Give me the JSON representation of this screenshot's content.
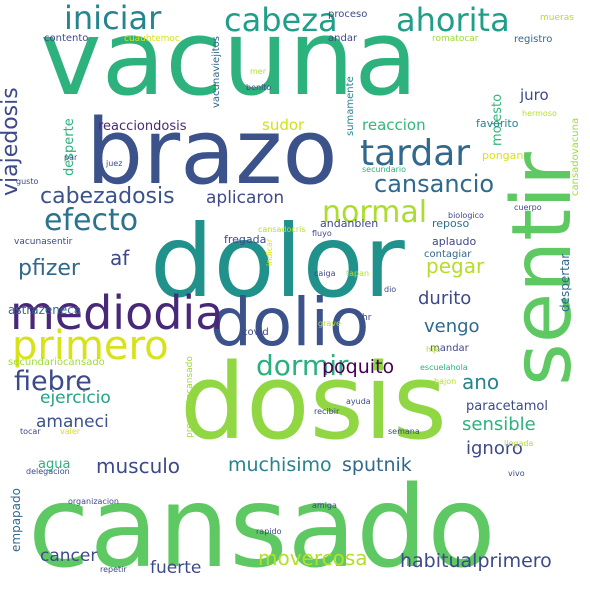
{
  "title": "word cloud",
  "palette": {
    "dark_purple": "#440154",
    "indigo": "#46337e",
    "slate_blue": "#365c8d",
    "blue_teal": "#277f8e",
    "teal": "#1fa187",
    "green": "#4ac16d",
    "light_green": "#9fda3a",
    "yellow": "#fde725"
  },
  "words": [
    {
      "text": "vacuna",
      "color": "#2db27d",
      "weight": 100
    },
    {
      "text": "cansado",
      "color": "#5ec962",
      "weight": 98
    },
    {
      "text": "dosis",
      "color": "#90d743",
      "weight": 90
    },
    {
      "text": "dolor",
      "color": "#21918c",
      "weight": 88
    },
    {
      "text": "brazo",
      "color": "#3b528b",
      "weight": 80
    },
    {
      "text": "sentir",
      "color": "#5ec962",
      "weight": 76
    },
    {
      "text": "dolio",
      "color": "#3b528b",
      "weight": 60
    },
    {
      "text": "mediodia",
      "color": "#482878",
      "weight": 45
    },
    {
      "text": "primero",
      "color": "#d8e219",
      "weight": 40
    },
    {
      "text": "tardar",
      "color": "#31688e",
      "weight": 38
    },
    {
      "text": "iniciar",
      "color": "#25858e",
      "weight": 34
    },
    {
      "text": "cabeza",
      "color": "#1f9e89",
      "weight": 34
    },
    {
      "text": "ahorita",
      "color": "#1f9e89",
      "weight": 34
    },
    {
      "text": "normal",
      "color": "#addc30",
      "weight": 32
    },
    {
      "text": "efecto",
      "color": "#2c728e",
      "weight": 32
    },
    {
      "text": "dormir",
      "color": "#2ab07f",
      "weight": 30
    },
    {
      "text": "fiebre",
      "color": "#3e4989",
      "weight": 29
    },
    {
      "text": "cansancio",
      "color": "#31688e",
      "weight": 26
    },
    {
      "text": "cabezadosis",
      "color": "#3b528b",
      "weight": 24
    },
    {
      "text": "pfizer",
      "color": "#31688e",
      "weight": 24
    },
    {
      "text": "viajedosis",
      "color": "#3e4989",
      "weight": 22
    },
    {
      "text": "pegar",
      "color": "#b5de2b",
      "weight": 22
    },
    {
      "text": "ano",
      "color": "#25858e",
      "weight": 22
    },
    {
      "text": "movercosa",
      "color": "#b5de2b",
      "weight": 22
    },
    {
      "text": "musculo",
      "color": "#3e4989",
      "weight": 22
    },
    {
      "text": "habitualprimero",
      "color": "#3e4989",
      "weight": 21
    },
    {
      "text": "poquito",
      "color": "#440154",
      "weight": 21
    },
    {
      "text": "muchisimo",
      "color": "#26828e",
      "weight": 21
    },
    {
      "text": "sputnik",
      "color": "#31688e",
      "weight": 21
    },
    {
      "text": "durito",
      "color": "#3e4989",
      "weight": 20
    },
    {
      "text": "vengo",
      "color": "#31688e",
      "weight": 20
    },
    {
      "text": "sensible",
      "color": "#2db27d",
      "weight": 20
    },
    {
      "text": "ignoro",
      "color": "#3e4989",
      "weight": 20
    },
    {
      "text": "aplicaron",
      "color": "#3e4989",
      "weight": 19
    },
    {
      "text": "ejercicio",
      "color": "#20a486",
      "weight": 19
    },
    {
      "text": "amaneci",
      "color": "#3b528b",
      "weight": 19
    },
    {
      "text": "cancer",
      "color": "#3e4989",
      "weight": 19
    },
    {
      "text": "fuerte",
      "color": "#3e4989",
      "weight": 19
    },
    {
      "text": "af",
      "color": "#3e4989",
      "weight": 20
    },
    {
      "text": "juro",
      "color": "#3e4989",
      "weight": 17
    },
    {
      "text": "sudor",
      "color": "#d0e11c",
      "weight": 16
    },
    {
      "text": "reaccion",
      "color": "#32b67a",
      "weight": 16
    },
    {
      "text": "reacciondosis",
      "color": "#482878",
      "weight": 14
    },
    {
      "text": "paracetamol",
      "color": "#3e4989",
      "weight": 14
    },
    {
      "text": "agua",
      "color": "#2db27d",
      "weight": 14
    },
    {
      "text": "empapado",
      "color": "#31688e",
      "weight": 13
    },
    {
      "text": "astrazeneca",
      "color": "#31688e",
      "weight": 13
    },
    {
      "text": "despertar",
      "color": "#31688e",
      "weight": 13
    },
    {
      "text": "desperte",
      "color": "#2db27d",
      "weight": 13
    },
    {
      "text": "molesto",
      "color": "#32b67a",
      "weight": 13
    },
    {
      "text": "vacunaviejitos",
      "color": "#31688e",
      "weight": 11
    },
    {
      "text": "fregada",
      "color": "#3e4989",
      "weight": 11
    },
    {
      "text": "andanbien",
      "color": "#3e4989",
      "weight": 11
    },
    {
      "text": "reposo",
      "color": "#2c728e",
      "weight": 11
    },
    {
      "text": "pongan",
      "color": "#d8e219",
      "weight": 11
    },
    {
      "text": "favorito",
      "color": "#25858e",
      "weight": 11
    },
    {
      "text": "aplaudo",
      "color": "#3e4989",
      "weight": 11
    },
    {
      "text": "contagiar",
      "color": "#31688e",
      "weight": 10
    },
    {
      "text": "registro",
      "color": "#31688e",
      "weight": 10
    },
    {
      "text": "proceso",
      "color": "#3e4989",
      "weight": 10
    },
    {
      "text": "contento",
      "color": "#3e4989",
      "weight": 10
    },
    {
      "text": "andar",
      "color": "#3e4989",
      "weight": 10
    },
    {
      "text": "mandar",
      "color": "#3e4989",
      "weight": 10
    },
    {
      "text": "covid",
      "color": "#3e4989",
      "weight": 10
    },
    {
      "text": "sumamente",
      "color": "#25858e",
      "weight": 10
    },
    {
      "text": "cansadovacuna",
      "color": "#9fda3a",
      "weight": 10
    },
    {
      "text": "secundariocansado",
      "color": "#9fda3a",
      "weight": 10
    },
    {
      "text": "preparatecansado",
      "color": "#9fda3a",
      "weight": 9
    },
    {
      "text": "cuauhtemoc",
      "color": "#d8e219",
      "weight": 9
    },
    {
      "text": "romatocar",
      "color": "#9fda3a",
      "weight": 9
    },
    {
      "text": "mueras",
      "color": "#b5de2b",
      "weight": 9
    },
    {
      "text": "hermoso",
      "color": "#b5de2b",
      "weight": 8
    },
    {
      "text": "mer",
      "color": "#b5de2b",
      "weight": 8
    },
    {
      "text": "benito",
      "color": "#3e4989",
      "weight": 8
    },
    {
      "text": "juez",
      "color": "#3e4989",
      "weight": 8
    },
    {
      "text": "par",
      "color": "#3e4989",
      "weight": 8
    },
    {
      "text": "gusto",
      "color": "#3e4989",
      "weight": 8
    },
    {
      "text": "secundario",
      "color": "#2db27d",
      "weight": 8
    },
    {
      "text": "biologico",
      "color": "#3e4989",
      "weight": 8
    },
    {
      "text": "cuerpo",
      "color": "#3e4989",
      "weight": 8
    },
    {
      "text": "vacunasentir",
      "color": "#3e4989",
      "weight": 9
    },
    {
      "text": "cansadocris",
      "color": "#b5de2b",
      "weight": 8
    },
    {
      "text": "fluyo",
      "color": "#3e4989",
      "weight": 8
    },
    {
      "text": "indicar",
      "color": "#d8e219",
      "weight": 8
    },
    {
      "text": "caiga",
      "color": "#3e4989",
      "weight": 8
    },
    {
      "text": "tapan",
      "color": "#b5de2b",
      "weight": 8
    },
    {
      "text": "dio",
      "color": "#3e4989",
      "weight": 8
    },
    {
      "text": "grave",
      "color": "#b5de2b",
      "weight": 8
    },
    {
      "text": "hr",
      "color": "#3e4989",
      "weight": 9
    },
    {
      "text": "hija",
      "color": "#b5de2b",
      "weight": 8
    },
    {
      "text": "escuelahola",
      "color": "#2db27d",
      "weight": 8
    },
    {
      "text": "bajon",
      "color": "#b5de2b",
      "weight": 8
    },
    {
      "text": "ayuda",
      "color": "#3e4989",
      "weight": 8
    },
    {
      "text": "recibir",
      "color": "#3e4989",
      "weight": 8
    },
    {
      "text": "semana",
      "color": "#3e4989",
      "weight": 8
    },
    {
      "text": "llegada",
      "color": "#b5de2b",
      "weight": 8
    },
    {
      "text": "vivo",
      "color": "#3e4989",
      "weight": 8
    },
    {
      "text": "tocar",
      "color": "#3e4989",
      "weight": 8
    },
    {
      "text": "valer",
      "color": "#d8e219",
      "weight": 8
    },
    {
      "text": "delegacion",
      "color": "#3e4989",
      "weight": 8
    },
    {
      "text": "organizacion",
      "color": "#3e4989",
      "weight": 8
    },
    {
      "text": "amiga",
      "color": "#3e4989",
      "weight": 8
    },
    {
      "text": "rapido",
      "color": "#3e4989",
      "weight": 8
    },
    {
      "text": "repetir",
      "color": "#3e4989",
      "weight": 8
    }
  ]
}
